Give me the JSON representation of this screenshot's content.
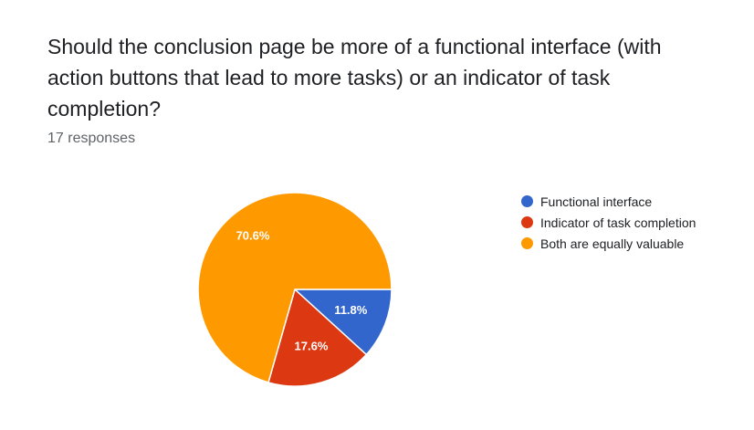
{
  "question": {
    "title": "Should the conclusion page be more of a functional interface (with action buttons that lead to more tasks) or an indicator of task completion?",
    "response_count": "17 responses"
  },
  "chart_data": {
    "type": "pie",
    "total_responses": 17,
    "slices": [
      {
        "label": "Functional interface",
        "value": 2,
        "percent": 11.8,
        "percent_label": "11.8%",
        "color": "#3366cc"
      },
      {
        "label": "Indicator of task completion",
        "value": 3,
        "percent": 17.6,
        "percent_label": "17.6%",
        "color": "#dc3912"
      },
      {
        "label": "Both are equally valuable",
        "value": 12,
        "percent": 70.6,
        "percent_label": "70.6%",
        "color": "#ff9900"
      }
    ],
    "legend_position": "right",
    "start_angle": "3 o'clock",
    "direction": "clockwise"
  }
}
